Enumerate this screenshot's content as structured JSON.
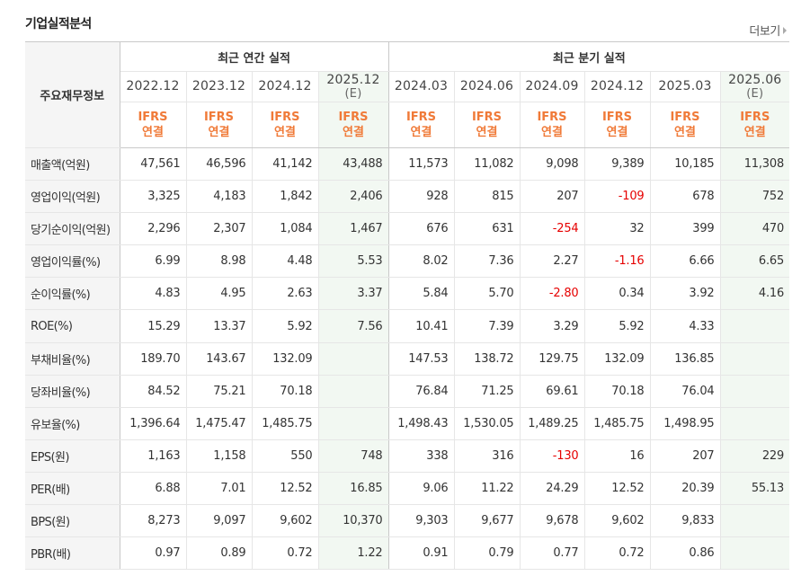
{
  "section_title": "기업실적분석",
  "more_link": "더보기",
  "table": {
    "label_header": "주요재무정보",
    "annual_header": "최근 연간 실적",
    "quarter_header": "최근 분기 실적",
    "periods": [
      {
        "label": "2022.12",
        "est": "",
        "std1": "IFRS",
        "std2": "연결"
      },
      {
        "label": "2023.12",
        "est": "",
        "std1": "IFRS",
        "std2": "연결"
      },
      {
        "label": "2024.12",
        "est": "",
        "std1": "IFRS",
        "std2": "연결"
      },
      {
        "label": "2025.12",
        "est": "(E)",
        "std1": "IFRS",
        "std2": "연결"
      },
      {
        "label": "2024.03",
        "est": "",
        "std1": "IFRS",
        "std2": "연결"
      },
      {
        "label": "2024.06",
        "est": "",
        "std1": "IFRS",
        "std2": "연결"
      },
      {
        "label": "2024.09",
        "est": "",
        "std1": "IFRS",
        "std2": "연결"
      },
      {
        "label": "2024.12",
        "est": "",
        "std1": "IFRS",
        "std2": "연결"
      },
      {
        "label": "2025.03",
        "est": "",
        "std1": "IFRS",
        "std2": "연결"
      },
      {
        "label": "2025.06",
        "est": "(E)",
        "std1": "IFRS",
        "std2": "연결"
      }
    ],
    "rows": [
      {
        "label": "매출액(억원)",
        "values": [
          "47,561",
          "46,596",
          "41,142",
          "43,488",
          "11,573",
          "11,082",
          "9,098",
          "9,389",
          "10,185",
          "11,308"
        ]
      },
      {
        "label": "영업이익(억원)",
        "values": [
          "3,325",
          "4,183",
          "1,842",
          "2,406",
          "928",
          "815",
          "207",
          "-109",
          "678",
          "752"
        ]
      },
      {
        "label": "당기순이익(억원)",
        "values": [
          "2,296",
          "2,307",
          "1,084",
          "1,467",
          "676",
          "631",
          "-254",
          "32",
          "399",
          "470"
        ]
      },
      {
        "label": "영업이익률(%)",
        "values": [
          "6.99",
          "8.98",
          "4.48",
          "5.53",
          "8.02",
          "7.36",
          "2.27",
          "-1.16",
          "6.66",
          "6.65"
        ]
      },
      {
        "label": "순이익률(%)",
        "values": [
          "4.83",
          "4.95",
          "2.63",
          "3.37",
          "5.84",
          "5.70",
          "-2.80",
          "0.34",
          "3.92",
          "4.16"
        ]
      },
      {
        "label": "ROE(%)",
        "values": [
          "15.29",
          "13.37",
          "5.92",
          "7.56",
          "10.41",
          "7.39",
          "3.29",
          "5.92",
          "4.33",
          ""
        ]
      },
      {
        "label": "부채비율(%)",
        "values": [
          "189.70",
          "143.67",
          "132.09",
          "",
          "147.53",
          "138.72",
          "129.75",
          "132.09",
          "136.85",
          ""
        ]
      },
      {
        "label": "당좌비율(%)",
        "values": [
          "84.52",
          "75.21",
          "70.18",
          "",
          "76.84",
          "71.25",
          "69.61",
          "70.18",
          "76.04",
          ""
        ]
      },
      {
        "label": "유보율(%)",
        "values": [
          "1,396.64",
          "1,475.47",
          "1,485.75",
          "",
          "1,498.43",
          "1,530.05",
          "1,489.25",
          "1,485.75",
          "1,498.95",
          ""
        ]
      },
      {
        "label": "EPS(원)",
        "values": [
          "1,163",
          "1,158",
          "550",
          "748",
          "338",
          "316",
          "-130",
          "16",
          "207",
          "229"
        ]
      },
      {
        "label": "PER(배)",
        "values": [
          "6.88",
          "7.01",
          "12.52",
          "16.85",
          "9.06",
          "11.22",
          "24.29",
          "12.52",
          "20.39",
          "55.13"
        ]
      },
      {
        "label": "BPS(원)",
        "values": [
          "8,273",
          "9,097",
          "9,602",
          "10,370",
          "9,303",
          "9,677",
          "9,678",
          "9,602",
          "9,833",
          ""
        ]
      },
      {
        "label": "PBR(배)",
        "values": [
          "0.97",
          "0.89",
          "0.72",
          "1.22",
          "0.91",
          "0.79",
          "0.77",
          "0.72",
          "0.86",
          ""
        ]
      }
    ]
  },
  "colors": {
    "negative": "#e60000",
    "accounting_standard": "#f07a38",
    "estimate_bg": "#f2f8f2",
    "label_bg": "#f5f5f5"
  }
}
